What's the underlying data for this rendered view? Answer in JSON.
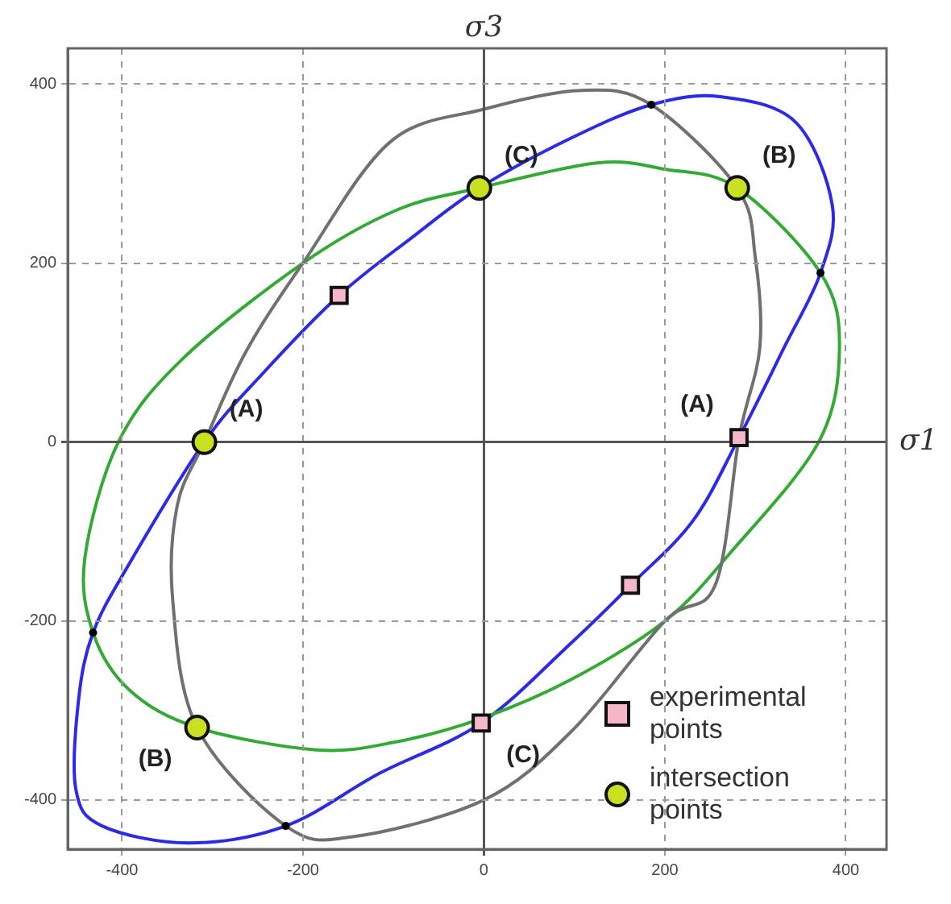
{
  "chart_data": {
    "type": "scatter",
    "xlabel": "σ1",
    "ylabel": "σ3",
    "xlim": [
      -460,
      445
    ],
    "ylim": [
      -455,
      440
    ],
    "xticks": [
      -400,
      -200,
      0,
      200,
      400
    ],
    "yticks": [
      -400,
      -200,
      0,
      200,
      400
    ],
    "grid": true,
    "legend": "bottom right",
    "series": [
      {
        "marker": "circle",
        "color": "#000000",
        "x": [
          185,
          372,
          -432,
          -219
        ],
        "values": [
          377,
          189,
          -213,
          -429
        ]
      },
      {
        "marker": "square",
        "name": "experimental points",
        "color": "#f4b6c8",
        "x": [
          -160,
          282,
          162,
          -3
        ],
        "values": [
          164,
          5,
          -160,
          -314
        ]
      },
      {
        "marker": "circle",
        "name": "intersection points",
        "color": "#c8e020",
        "x": [
          -309,
          -5,
          280,
          -317
        ],
        "values": [
          0,
          284,
          284,
          -319
        ]
      }
    ],
    "annotations": [
      {
        "text": "(A)",
        "x": -309,
        "y": 0
      },
      {
        "text": "(A)",
        "x": 282,
        "y": 5
      },
      {
        "text": "(B)",
        "x": 280,
        "y": 284
      },
      {
        "text": "(B)",
        "x": -317,
        "y": -319
      },
      {
        "text": "(C)",
        "x": -5,
        "y": 284
      },
      {
        "text": "(C)",
        "x": -3,
        "y": -314
      }
    ]
  }
}
